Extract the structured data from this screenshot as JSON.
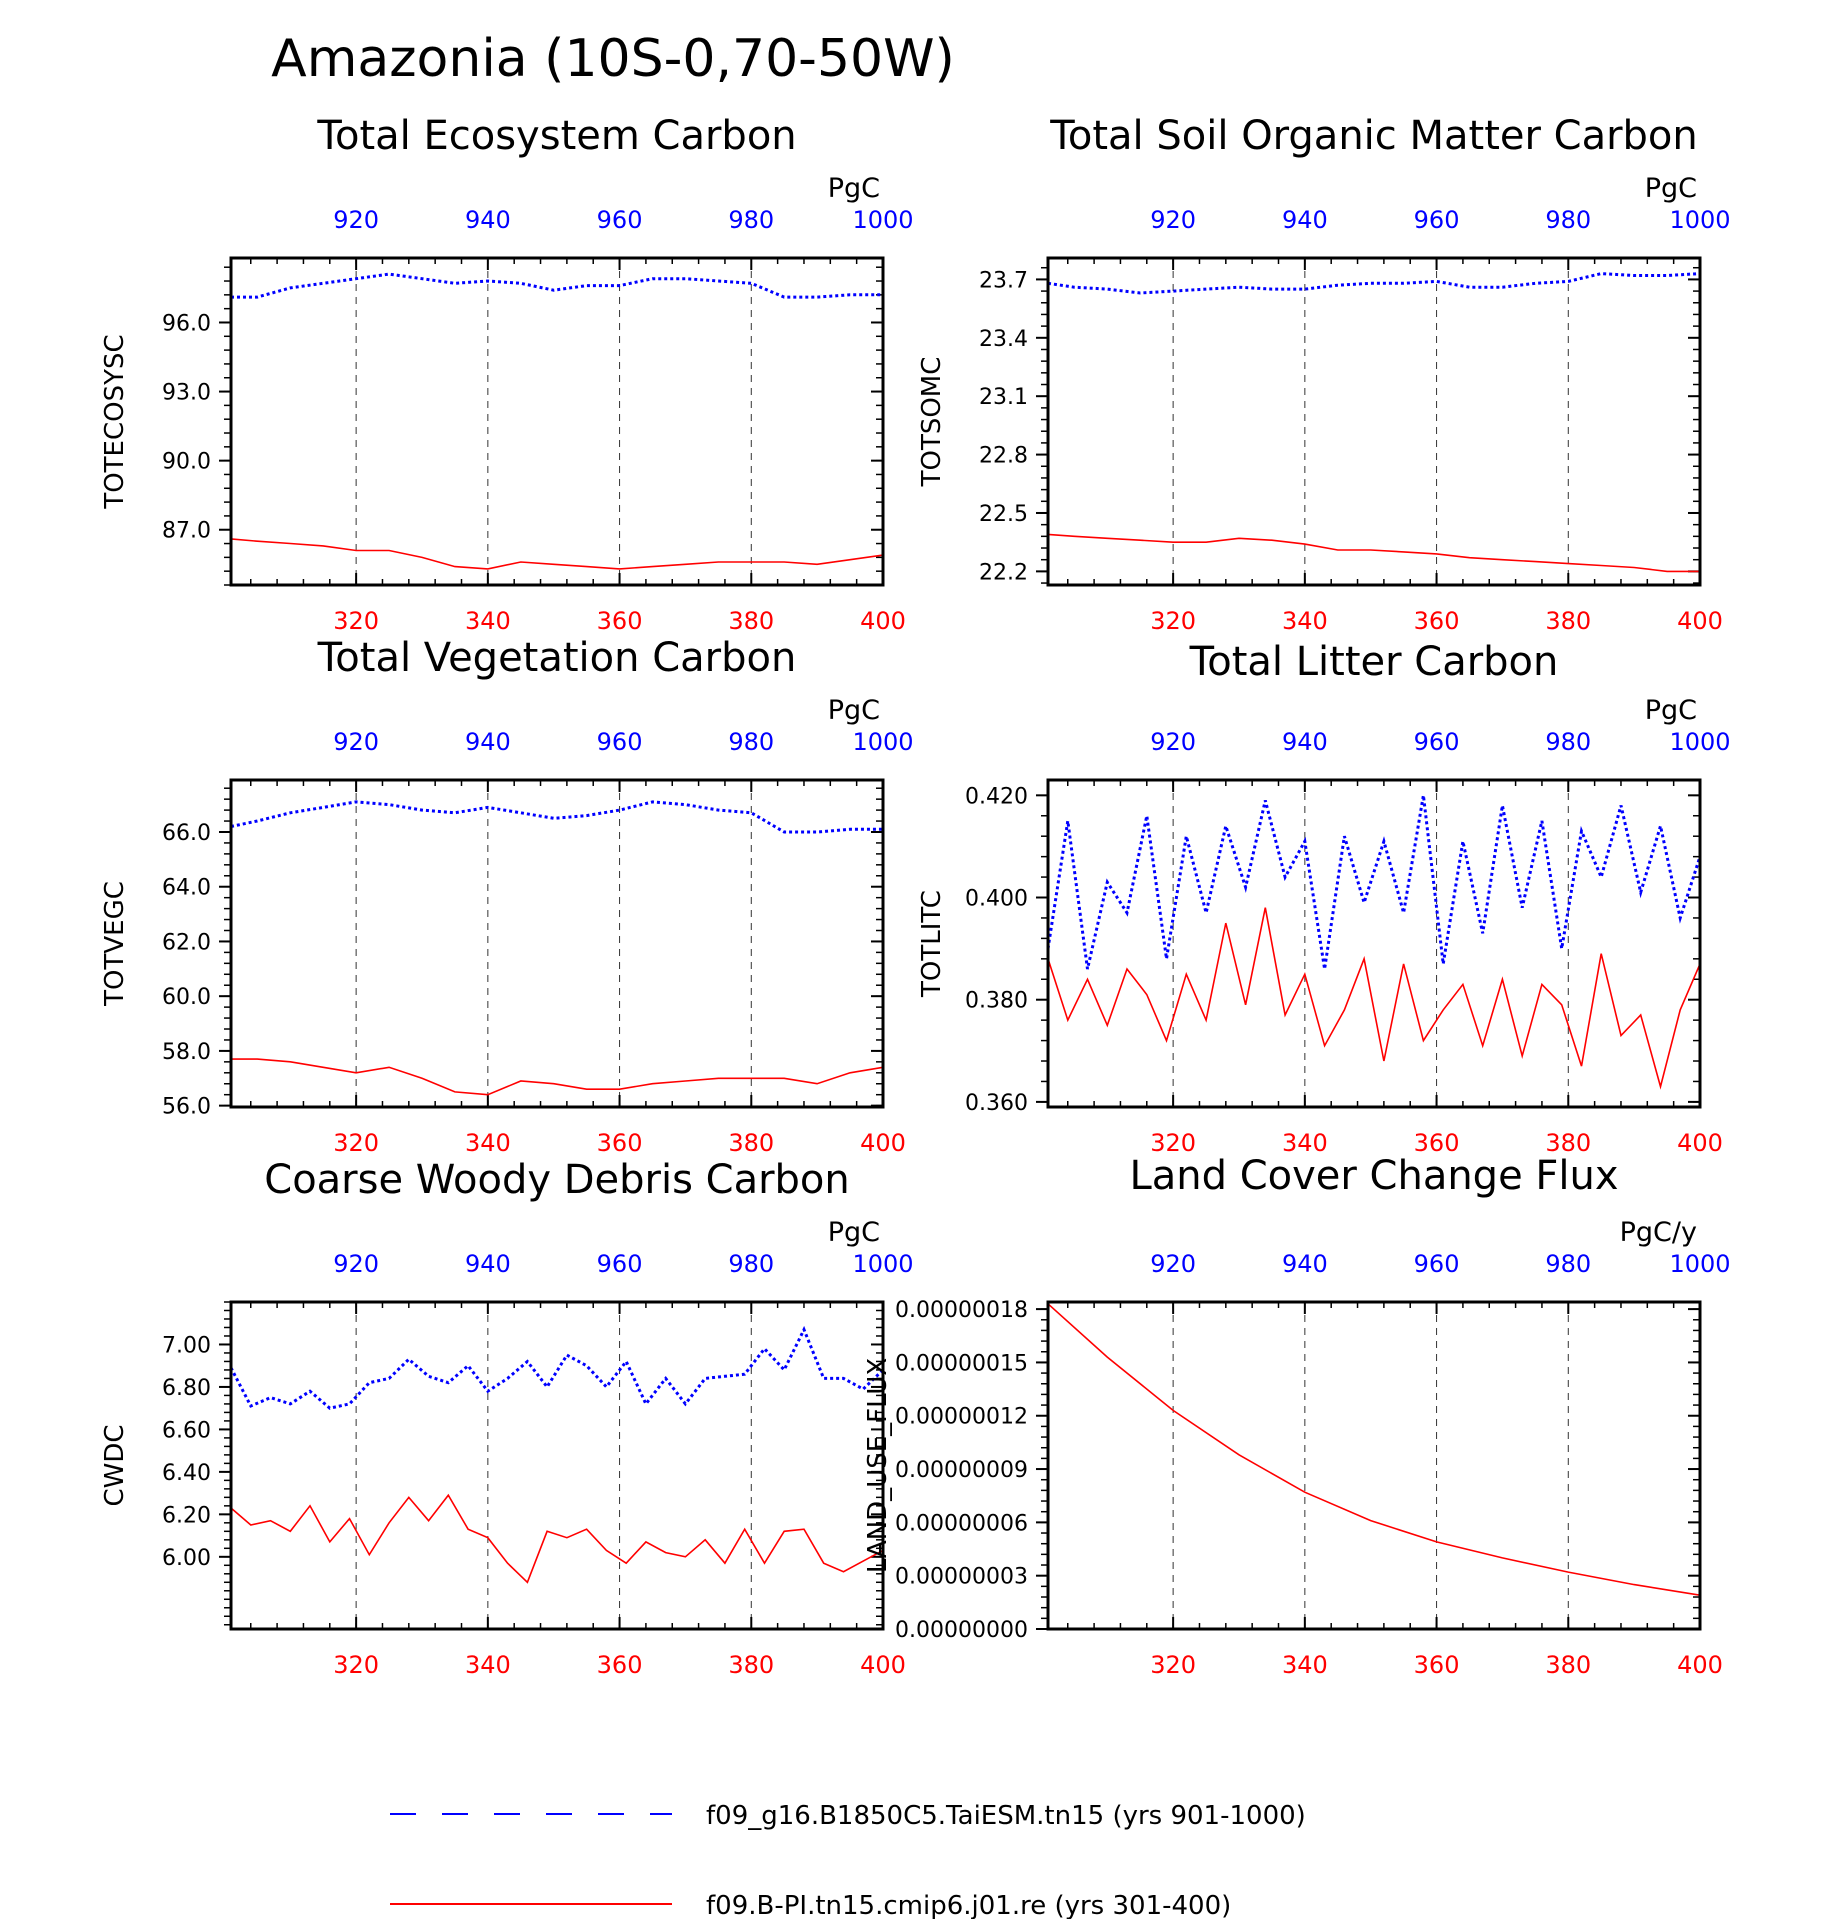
{
  "figure": {
    "title": "Amazonia (10S-0,70-50W)",
    "legend": [
      {
        "label": "f09_g16.B1850C5.TaiESM.tn15 (yrs 901-1000)",
        "color": "#0000ff",
        "style": "dashed"
      },
      {
        "label": "f09.B-PI.tn15.cmip6.j01.re (yrs 301-400)",
        "color": "#ff0000",
        "style": "solid"
      }
    ]
  },
  "chart_data": [
    {
      "type": "line",
      "title": "Total Ecosystem Carbon",
      "ylabel": "TOTECOSYSC",
      "units": "PgC",
      "ylim": [
        84.6,
        98.8
      ],
      "yticks": [
        96.0,
        93.0,
        90.0,
        87.0
      ],
      "ytick_labels": [
        "96.0",
        "93.0",
        "90.0",
        "87.0"
      ],
      "x_bottom": {
        "lim": [
          301,
          400
        ],
        "ticks": [
          320,
          340,
          360,
          380,
          400
        ],
        "color": "#ff0000"
      },
      "x_top": {
        "lim": [
          901,
          1000
        ],
        "ticks": [
          920,
          940,
          960,
          980,
          1000
        ],
        "color": "#0000ff"
      },
      "grid": "vertical dashed",
      "series": [
        {
          "color": "#0000ff",
          "style": "dotted",
          "axis": "top",
          "x": [
            901,
            905,
            910,
            915,
            920,
            925,
            930,
            935,
            940,
            945,
            950,
            955,
            960,
            965,
            970,
            975,
            980,
            985,
            990,
            995,
            1000
          ],
          "y": [
            97.1,
            97.1,
            97.5,
            97.7,
            97.9,
            98.1,
            97.9,
            97.7,
            97.8,
            97.7,
            97.4,
            97.6,
            97.6,
            97.9,
            97.9,
            97.8,
            97.7,
            97.1,
            97.1,
            97.2,
            97.2
          ]
        },
        {
          "color": "#ff0000",
          "style": "solid",
          "axis": "bottom",
          "x": [
            301,
            305,
            310,
            315,
            320,
            325,
            330,
            335,
            340,
            345,
            350,
            355,
            360,
            365,
            370,
            375,
            380,
            385,
            390,
            395,
            400
          ],
          "y": [
            86.6,
            86.5,
            86.4,
            86.3,
            86.1,
            86.1,
            85.8,
            85.4,
            85.3,
            85.6,
            85.5,
            85.4,
            85.3,
            85.4,
            85.5,
            85.6,
            85.6,
            85.6,
            85.5,
            85.7,
            85.9
          ]
        }
      ]
    },
    {
      "type": "line",
      "title": "Total Soil Organic Matter Carbon",
      "ylabel": "TOTSOMC",
      "units": "PgC",
      "ylim": [
        22.13,
        23.81
      ],
      "yticks": [
        23.7,
        23.4,
        23.1,
        22.8,
        22.5,
        22.2
      ],
      "ytick_labels": [
        "23.7",
        "23.4",
        "23.1",
        "22.8",
        "22.5",
        "22.2"
      ],
      "x_bottom": {
        "lim": [
          301,
          400
        ],
        "ticks": [
          320,
          340,
          360,
          380,
          400
        ],
        "color": "#ff0000"
      },
      "x_top": {
        "lim": [
          901,
          1000
        ],
        "ticks": [
          920,
          940,
          960,
          980,
          1000
        ],
        "color": "#0000ff"
      },
      "grid": "vertical dashed",
      "series": [
        {
          "color": "#0000ff",
          "style": "dotted",
          "axis": "top",
          "x": [
            901,
            905,
            910,
            915,
            920,
            925,
            930,
            935,
            940,
            945,
            950,
            955,
            960,
            965,
            970,
            975,
            980,
            985,
            990,
            995,
            1000
          ],
          "y": [
            23.68,
            23.66,
            23.65,
            23.63,
            23.64,
            23.65,
            23.66,
            23.65,
            23.65,
            23.67,
            23.68,
            23.68,
            23.69,
            23.66,
            23.66,
            23.68,
            23.69,
            23.73,
            23.72,
            23.72,
            23.73
          ]
        },
        {
          "color": "#ff0000",
          "style": "solid",
          "axis": "bottom",
          "x": [
            301,
            305,
            310,
            315,
            320,
            325,
            330,
            335,
            340,
            345,
            350,
            355,
            360,
            365,
            370,
            375,
            380,
            385,
            390,
            395,
            400
          ],
          "y": [
            22.39,
            22.38,
            22.37,
            22.36,
            22.35,
            22.35,
            22.37,
            22.36,
            22.34,
            22.31,
            22.31,
            22.3,
            22.29,
            22.27,
            22.26,
            22.25,
            22.24,
            22.23,
            22.22,
            22.2,
            22.2
          ]
        }
      ]
    },
    {
      "type": "line",
      "title": "Total Vegetation Carbon",
      "ylabel": "TOTVEGC",
      "units": "PgC",
      "ylim": [
        55.95,
        67.9
      ],
      "yticks": [
        66.0,
        64.0,
        62.0,
        60.0,
        58.0,
        56.0
      ],
      "ytick_labels": [
        "66.0",
        "64.0",
        "62.0",
        "60.0",
        "58.0",
        "56.0"
      ],
      "x_bottom": {
        "lim": [
          301,
          400
        ],
        "ticks": [
          320,
          340,
          360,
          380,
          400
        ],
        "color": "#ff0000"
      },
      "x_top": {
        "lim": [
          901,
          1000
        ],
        "ticks": [
          920,
          940,
          960,
          980,
          1000
        ],
        "color": "#0000ff"
      },
      "grid": "vertical dashed",
      "series": [
        {
          "color": "#0000ff",
          "style": "dotted",
          "axis": "top",
          "x": [
            901,
            905,
            910,
            915,
            920,
            925,
            930,
            935,
            940,
            945,
            950,
            955,
            960,
            965,
            970,
            975,
            980,
            985,
            990,
            995,
            1000
          ],
          "y": [
            66.2,
            66.4,
            66.7,
            66.9,
            67.1,
            67.0,
            66.8,
            66.7,
            66.9,
            66.7,
            66.5,
            66.6,
            66.8,
            67.1,
            67.0,
            66.8,
            66.7,
            66.0,
            66.0,
            66.1,
            66.1
          ]
        },
        {
          "color": "#ff0000",
          "style": "solid",
          "axis": "bottom",
          "x": [
            301,
            305,
            310,
            315,
            320,
            325,
            330,
            335,
            340,
            345,
            350,
            355,
            360,
            365,
            370,
            375,
            380,
            385,
            390,
            395,
            400
          ],
          "y": [
            57.7,
            57.7,
            57.6,
            57.4,
            57.2,
            57.4,
            57.0,
            56.5,
            56.4,
            56.9,
            56.8,
            56.6,
            56.6,
            56.8,
            56.9,
            57.0,
            57.0,
            57.0,
            56.8,
            57.2,
            57.4
          ]
        }
      ]
    },
    {
      "type": "line",
      "title": "Total Litter Carbon",
      "ylabel": "TOTLITC",
      "units": "PgC",
      "ylim": [
        0.359,
        0.423
      ],
      "yticks": [
        0.42,
        0.4,
        0.38,
        0.36
      ],
      "ytick_labels": [
        "0.420",
        "0.400",
        "0.380",
        "0.360"
      ],
      "x_bottom": {
        "lim": [
          301,
          400
        ],
        "ticks": [
          320,
          340,
          360,
          380,
          400
        ],
        "color": "#ff0000"
      },
      "x_top": {
        "lim": [
          901,
          1000
        ],
        "ticks": [
          920,
          940,
          960,
          980,
          1000
        ],
        "color": "#0000ff"
      },
      "grid": "vertical dashed",
      "series": [
        {
          "color": "#0000ff",
          "style": "dotted",
          "axis": "top",
          "x": [
            901,
            904,
            907,
            910,
            913,
            916,
            919,
            922,
            925,
            928,
            931,
            934,
            937,
            940,
            943,
            946,
            949,
            952,
            955,
            958,
            961,
            964,
            967,
            970,
            973,
            976,
            979,
            982,
            985,
            988,
            991,
            994,
            997,
            1000
          ],
          "y": [
            0.39,
            0.415,
            0.386,
            0.403,
            0.397,
            0.416,
            0.388,
            0.412,
            0.397,
            0.414,
            0.402,
            0.419,
            0.404,
            0.411,
            0.386,
            0.412,
            0.399,
            0.411,
            0.397,
            0.42,
            0.387,
            0.411,
            0.393,
            0.418,
            0.398,
            0.415,
            0.39,
            0.413,
            0.404,
            0.418,
            0.401,
            0.414,
            0.396,
            0.408
          ]
        },
        {
          "color": "#ff0000",
          "style": "solid",
          "axis": "bottom",
          "x": [
            301,
            304,
            307,
            310,
            313,
            316,
            319,
            322,
            325,
            328,
            331,
            334,
            337,
            340,
            343,
            346,
            349,
            352,
            355,
            358,
            361,
            364,
            367,
            370,
            373,
            376,
            379,
            382,
            385,
            388,
            391,
            394,
            397,
            400
          ],
          "y": [
            0.388,
            0.376,
            0.384,
            0.375,
            0.386,
            0.381,
            0.372,
            0.385,
            0.376,
            0.395,
            0.379,
            0.398,
            0.377,
            0.385,
            0.371,
            0.378,
            0.388,
            0.368,
            0.387,
            0.372,
            0.378,
            0.383,
            0.371,
            0.384,
            0.369,
            0.383,
            0.379,
            0.367,
            0.389,
            0.373,
            0.377,
            0.363,
            0.378,
            0.387
          ]
        }
      ]
    },
    {
      "type": "line",
      "title": "Coarse Woody Debris Carbon",
      "ylabel": "CWDC",
      "units": "PgC",
      "ylim": [
        5.66,
        7.2
      ],
      "yticks": [
        7.0,
        6.8,
        6.6,
        6.4,
        6.2,
        6.0
      ],
      "ytick_labels": [
        "7.00",
        "6.80",
        "6.60",
        "6.40",
        "6.20",
        "6.00"
      ],
      "x_bottom": {
        "lim": [
          301,
          400
        ],
        "ticks": [
          320,
          340,
          360,
          380,
          400
        ],
        "color": "#ff0000"
      },
      "x_top": {
        "lim": [
          901,
          1000
        ],
        "ticks": [
          920,
          940,
          960,
          980,
          1000
        ],
        "color": "#0000ff"
      },
      "grid": "vertical dashed",
      "series": [
        {
          "color": "#0000ff",
          "style": "dotted",
          "axis": "top",
          "x": [
            901,
            904,
            907,
            910,
            913,
            916,
            919,
            922,
            925,
            928,
            931,
            934,
            937,
            940,
            943,
            946,
            949,
            952,
            955,
            958,
            961,
            964,
            967,
            970,
            973,
            976,
            979,
            982,
            985,
            988,
            991,
            994,
            997,
            1000
          ],
          "y": [
            6.89,
            6.71,
            6.75,
            6.72,
            6.78,
            6.7,
            6.72,
            6.82,
            6.84,
            6.93,
            6.85,
            6.82,
            6.9,
            6.78,
            6.84,
            6.92,
            6.8,
            6.95,
            6.9,
            6.8,
            6.92,
            6.72,
            6.84,
            6.72,
            6.84,
            6.85,
            6.86,
            6.98,
            6.88,
            7.07,
            6.84,
            6.84,
            6.79,
            6.88
          ]
        },
        {
          "color": "#ff0000",
          "style": "solid",
          "axis": "bottom",
          "x": [
            301,
            304,
            307,
            310,
            313,
            316,
            319,
            322,
            325,
            328,
            331,
            334,
            337,
            340,
            343,
            346,
            349,
            352,
            355,
            358,
            361,
            364,
            367,
            370,
            373,
            376,
            379,
            382,
            385,
            388,
            391,
            394,
            397,
            400
          ],
          "y": [
            6.23,
            6.15,
            6.17,
            6.12,
            6.24,
            6.07,
            6.18,
            6.01,
            6.16,
            6.28,
            6.17,
            6.29,
            6.13,
            6.09,
            5.97,
            5.88,
            6.12,
            6.09,
            6.13,
            6.03,
            5.97,
            6.07,
            6.02,
            6.0,
            6.08,
            5.97,
            6.13,
            5.97,
            6.12,
            6.13,
            5.97,
            5.93,
            5.98,
            6.03
          ]
        }
      ]
    },
    {
      "type": "line",
      "title": "Land Cover Change Flux",
      "ylabel": "LAND_USE_FLUX",
      "units": "PgC/y",
      "ylim": [
        0.0,
        1.84e-07
      ],
      "yticks": [
        1.8e-07,
        1.5e-07,
        1.2e-07,
        9e-08,
        6e-08,
        3e-08,
        0.0
      ],
      "ytick_labels": [
        "0.00000018",
        "0.00000015",
        "0.00000012",
        "0.00000009",
        "0.00000006",
        "0.00000003",
        "0.00000000"
      ],
      "x_bottom": {
        "lim": [
          301,
          400
        ],
        "ticks": [
          320,
          340,
          360,
          380,
          400
        ],
        "color": "#ff0000"
      },
      "x_top": {
        "lim": [
          901,
          1000
        ],
        "ticks": [
          920,
          940,
          960,
          980,
          1000
        ],
        "color": "#0000ff"
      },
      "grid": "vertical dashed",
      "series": [
        {
          "color": "#ff0000",
          "style": "solid",
          "axis": "bottom",
          "x": [
            301,
            310,
            320,
            330,
            340,
            350,
            360,
            370,
            380,
            390,
            400
          ],
          "y": [
            1.83e-07,
            1.53e-07,
            1.23e-07,
            9.8e-08,
            7.7e-08,
            6.1e-08,
            4.9e-08,
            4e-08,
            3.2e-08,
            2.5e-08,
            1.9e-08
          ]
        }
      ]
    }
  ]
}
